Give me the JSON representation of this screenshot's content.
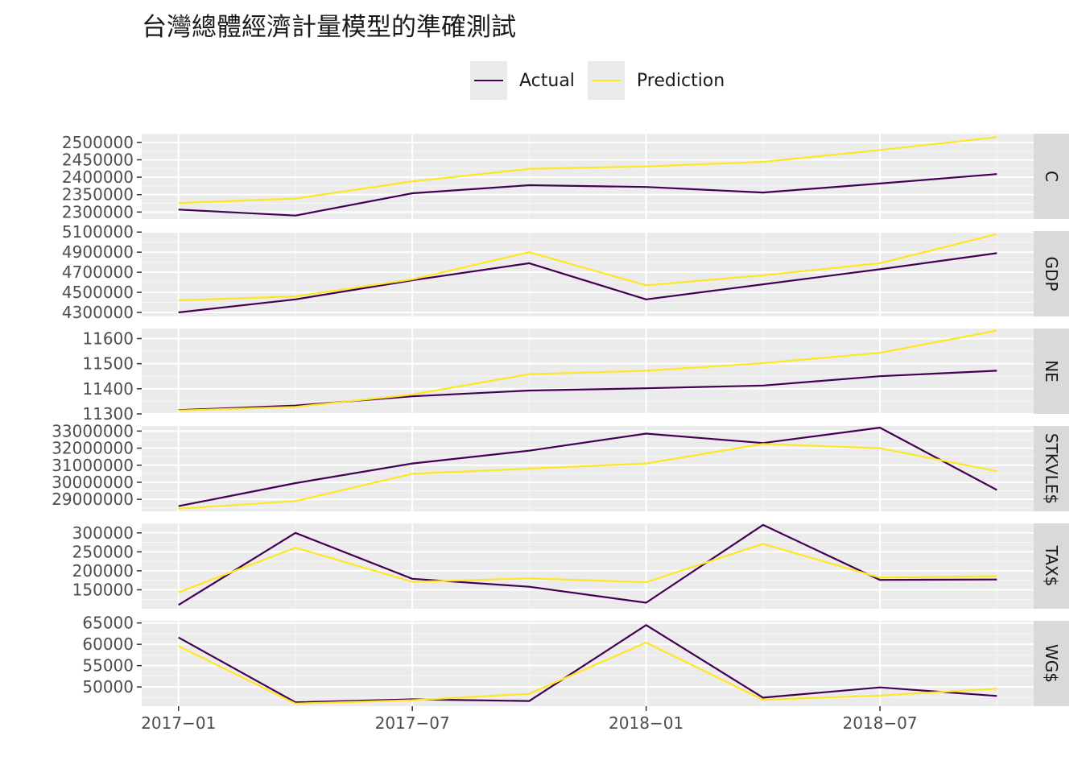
{
  "chart_data": {
    "type": "line",
    "title": "台灣總體經濟計量模型的準確測試",
    "legend_position": "top",
    "series_names": [
      "Actual",
      "Prediction"
    ],
    "colors": {
      "Actual": "#440154",
      "Prediction": "#fde725",
      "panel_bg": "#ebebeb",
      "strip_bg": "#d9d9d9",
      "grid": "#ffffff"
    },
    "x_dates": [
      "2017-01",
      "2017-04",
      "2017-07",
      "2017-10",
      "2018-01",
      "2018-04",
      "2018-07",
      "2018-10"
    ],
    "x_ticks": [
      "2017-01",
      "2017-07",
      "2018-01",
      "2018-07"
    ],
    "x_tick_labels": [
      "2017−01",
      "2017−07",
      "2018−01",
      "2018−07"
    ],
    "panels": [
      {
        "name": "C",
        "ylim": [
          2280000,
          2525000
        ],
        "yticks": [
          2300000,
          2350000,
          2400000,
          2450000,
          2500000
        ],
        "series": [
          {
            "name": "Actual",
            "values": [
              2307000,
              2290000,
              2354000,
              2377000,
              2372000,
              2356000,
              2382000,
              2409000
            ]
          },
          {
            "name": "Prediction",
            "values": [
              2326000,
              2339000,
              2388000,
              2424000,
              2431000,
              2444000,
              2478000,
              2515000
            ]
          }
        ]
      },
      {
        "name": "GDP",
        "ylim": [
          4260000,
          5110000
        ],
        "yticks": [
          4300000,
          4500000,
          4700000,
          4900000,
          5100000
        ],
        "series": [
          {
            "name": "Actual",
            "values": [
              4300000,
              4430000,
              4620000,
              4790000,
              4430000,
              4580000,
              4730000,
              4890000
            ]
          },
          {
            "name": "Prediction",
            "values": [
              4420000,
              4460000,
              4630000,
              4900000,
              4570000,
              4670000,
              4790000,
              5080000
            ]
          }
        ]
      },
      {
        "name": "NE",
        "ylim": [
          11300,
          11640
        ],
        "yticks": [
          11300,
          11400,
          11500,
          11600
        ],
        "series": [
          {
            "name": "Actual",
            "values": [
              11315,
              11333,
              11370,
              11393,
              11402,
              11413,
              11450,
              11472
            ]
          },
          {
            "name": "Prediction",
            "values": [
              11313,
              11328,
              11377,
              11458,
              11472,
              11502,
              11543,
              11632
            ]
          }
        ]
      },
      {
        "name": "STKVLE$",
        "ylim": [
          28300000,
          33300000
        ],
        "yticks": [
          29000000,
          30000000,
          31000000,
          32000000,
          33000000
        ],
        "series": [
          {
            "name": "Actual",
            "values": [
              28600000,
              29950000,
              31100000,
              31850000,
              32850000,
              32300000,
              33200000,
              29550000
            ]
          },
          {
            "name": "Prediction",
            "values": [
              28450000,
              28900000,
              30500000,
              30800000,
              31100000,
              32250000,
              32000000,
              30650000
            ]
          }
        ]
      },
      {
        "name": "TAX$",
        "ylim": [
          100000,
          325000
        ],
        "yticks": [
          150000,
          200000,
          250000,
          300000
        ],
        "series": [
          {
            "name": "Actual",
            "values": [
              110000,
              300000,
              179000,
              158000,
              116000,
              321000,
              176000,
              177000
            ]
          },
          {
            "name": "Prediction",
            "values": [
              143000,
              261000,
              171000,
              180000,
              170000,
              271000,
              182000,
              186000
            ]
          }
        ]
      },
      {
        "name": "WG$",
        "ylim": [
          45500,
          65500
        ],
        "yticks": [
          50000,
          55000,
          60000,
          65000
        ],
        "series": [
          {
            "name": "Actual",
            "values": [
              61600,
              46400,
              47100,
              46700,
              64500,
              47500,
              49900,
              47900
            ]
          },
          {
            "name": "Prediction",
            "values": [
              59600,
              46100,
              46900,
              48400,
              60400,
              47000,
              48000,
              49600
            ]
          }
        ]
      }
    ]
  }
}
